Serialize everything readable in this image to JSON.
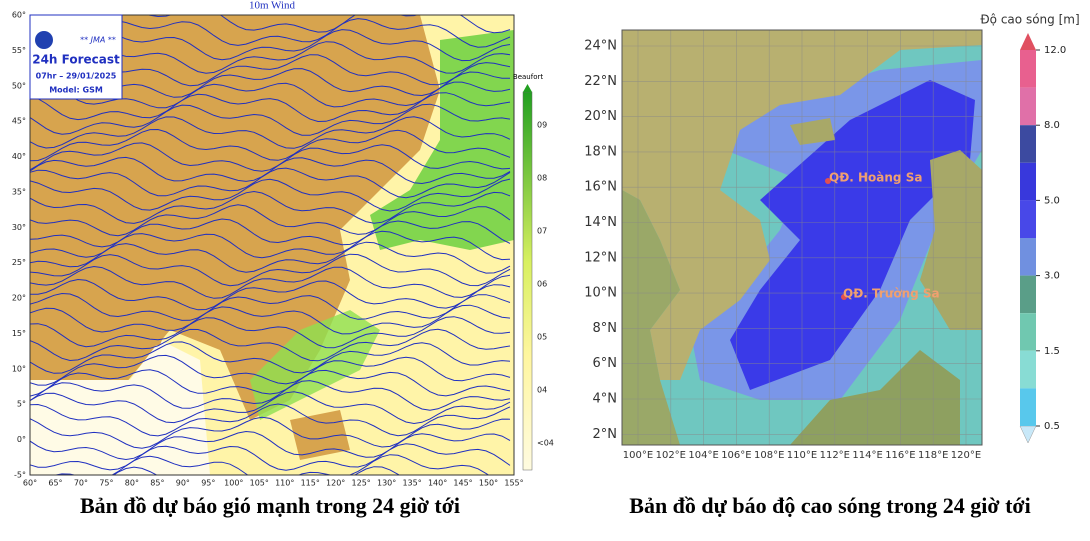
{
  "wind_map": {
    "title": "10m Wind",
    "logo": {
      "agency": "** JMA **",
      "heading": "24h Forecast",
      "time": "07hr – 29/01/2025",
      "model": "Model: GSM"
    },
    "lat_labels": [
      "60°",
      "55°",
      "50°",
      "45°",
      "40°",
      "35°",
      "30°",
      "25°",
      "20°",
      "15°",
      "10°",
      "5°",
      "0°",
      "-5°"
    ],
    "lon_labels": [
      "60°",
      "65°",
      "70°",
      "75°",
      "80°",
      "85°",
      "90°",
      "95°",
      "100°",
      "105°",
      "110°",
      "115°",
      "120°",
      "125°",
      "130°",
      "135°",
      "140°",
      "145°",
      "150°",
      "155°"
    ],
    "colorbar": {
      "title": "Beaufort",
      "labels": [
        "09",
        "08",
        "07",
        "06",
        "05",
        "04",
        "<04"
      ]
    },
    "caption": "Bản đồ dự báo gió mạnh trong 24 giờ tới"
  },
  "wave_map": {
    "lat_labels": [
      "24°N",
      "22°N",
      "20°N",
      "18°N",
      "16°N",
      "14°N",
      "12°N",
      "10°N",
      "8°N",
      "6°N",
      "4°N",
      "2°N"
    ],
    "lon_labels": [
      "100°E",
      "102°E",
      "104°E",
      "106°E",
      "108°E",
      "110°E",
      "112°E",
      "114°E",
      "116°E",
      "118°E",
      "120°E"
    ],
    "places": [
      "QĐ. Hoàng Sa",
      "QĐ. Trường Sa"
    ],
    "colorbar": {
      "title": "Độ cao sóng [m]",
      "labels": [
        "12.0",
        "8.0",
        "5.0",
        "3.0",
        "1.5",
        "0.5"
      ]
    },
    "caption": "Bản đồ dự báo độ cao sóng trong 24 giờ tới"
  }
}
